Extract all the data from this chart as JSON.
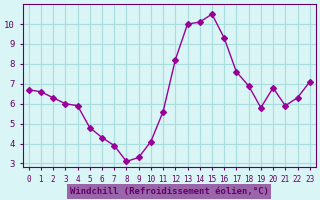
{
  "x": [
    0,
    1,
    2,
    3,
    4,
    5,
    6,
    7,
    8,
    9,
    10,
    11,
    12,
    13,
    14,
    15,
    16,
    17,
    18,
    19,
    20,
    21,
    22,
    23
  ],
  "y": [
    6.7,
    6.6,
    6.3,
    6.0,
    5.9,
    4.8,
    4.3,
    3.9,
    3.1,
    3.3,
    4.1,
    5.6,
    8.2,
    10.0,
    10.1,
    10.5,
    9.3,
    7.6,
    6.9,
    5.8,
    6.8,
    5.9,
    6.3,
    7.1
  ],
  "line_color": "#990099",
  "marker": "D",
  "marker_size": 3,
  "bg_color": "#d9f5f5",
  "grid_color": "#aadddd",
  "xlabel": "Windchill (Refroidissement éolien,°C)",
  "xlabel_color": "#660066",
  "xlabel_bg": "#9966aa",
  "ylabel_ticks": [
    3,
    4,
    5,
    6,
    7,
    8,
    9,
    10
  ],
  "xtick_labels": [
    "0",
    "1",
    "2",
    "3",
    "4",
    "5",
    "6",
    "7",
    "8",
    "9",
    "10",
    "11",
    "12",
    "13",
    "14",
    "15",
    "16",
    "17",
    "18",
    "19",
    "20",
    "21",
    "22",
    "23"
  ],
  "xlim": [
    -0.5,
    23.5
  ],
  "ylim": [
    2.8,
    11.0
  ],
  "title_color": "#ffffff",
  "tick_color": "#660066",
  "spine_color": "#660066"
}
